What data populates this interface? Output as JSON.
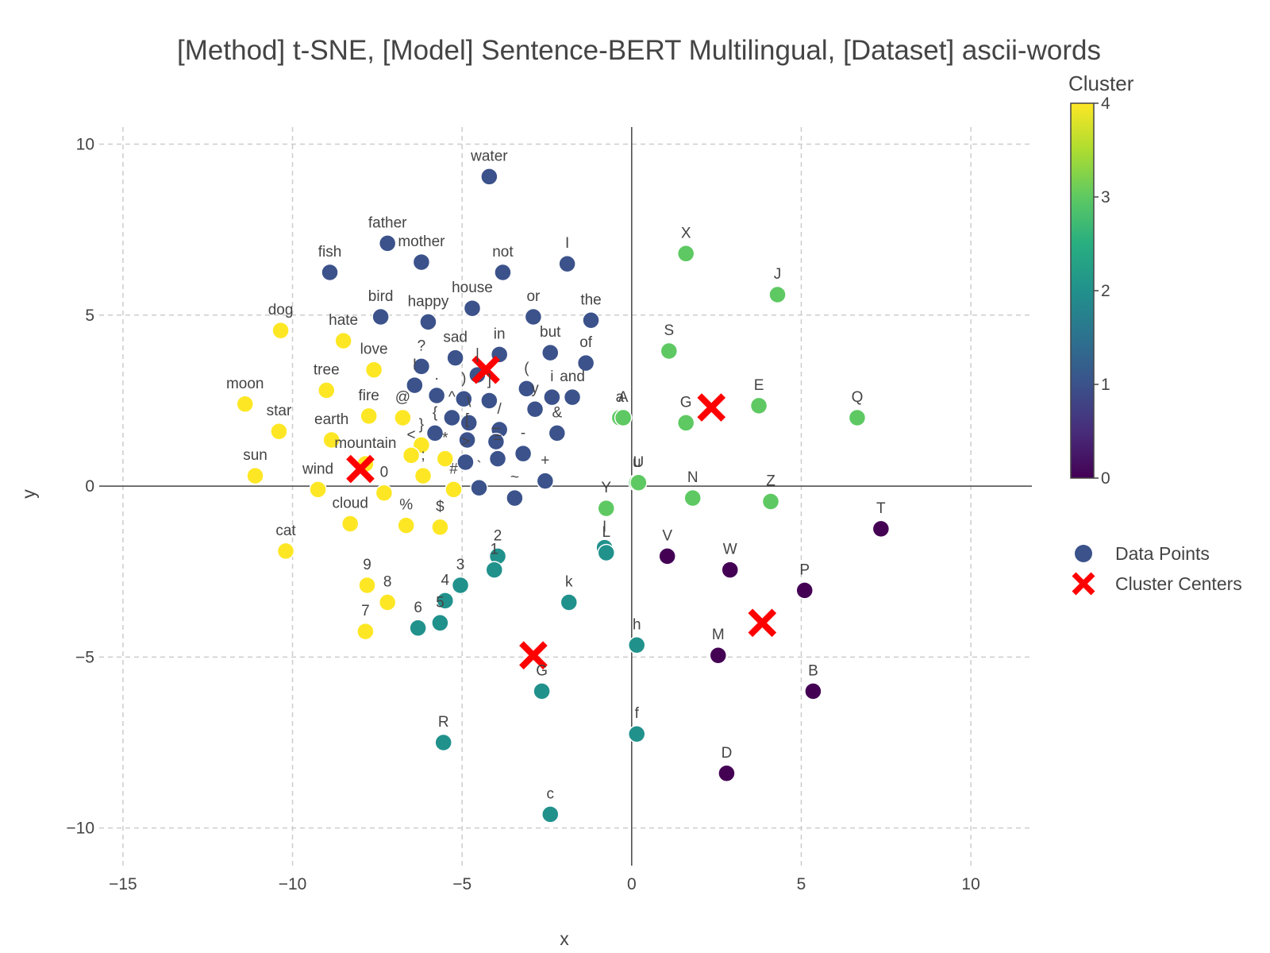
{
  "chart_data": {
    "type": "scatter",
    "title": "[Method] t-SNE, [Model] Sentence-BERT Multilingual, [Dataset] ascii-words",
    "xlabel": "x",
    "ylabel": "y",
    "xlim": [
      -15.7,
      11.8
    ],
    "ylim": [
      -11.1,
      10.5
    ],
    "xticks": [
      -15,
      -10,
      -5,
      0,
      5,
      10
    ],
    "xtick_labels": [
      "−15",
      "−10",
      "−5",
      "0",
      "5",
      "10"
    ],
    "yticks": [
      -10,
      -5,
      0,
      5,
      10
    ],
    "ytick_labels": [
      "−10",
      "−5",
      "0",
      "5",
      "10"
    ],
    "grid": true,
    "legend": {
      "position": "right",
      "entries": [
        "Data Points",
        "Cluster Centers"
      ]
    },
    "colorbar": {
      "title": "Cluster",
      "min": 0,
      "max": 4,
      "ticks": [
        "0",
        "1",
        "2",
        "3",
        "4"
      ],
      "colormap": "viridis"
    },
    "colors": {
      "cluster_0": "#440154",
      "cluster_1": "#3b528b",
      "cluster_2": "#21918c",
      "cluster_3": "#5ec962",
      "cluster_4": "#fde725",
      "center": "#ff0000"
    },
    "series": [
      {
        "name": "Data Points",
        "points": [
          {
            "label": "water",
            "x": -4.2,
            "y": 9.05,
            "cluster": 1
          },
          {
            "label": "father",
            "x": -7.2,
            "y": 7.1,
            "cluster": 1
          },
          {
            "label": "mother",
            "x": -6.2,
            "y": 6.55,
            "cluster": 1
          },
          {
            "label": "fish",
            "x": -8.9,
            "y": 6.25,
            "cluster": 1
          },
          {
            "label": "not",
            "x": -3.8,
            "y": 6.25,
            "cluster": 1
          },
          {
            "label": "I",
            "x": -1.9,
            "y": 6.5,
            "cluster": 1
          },
          {
            "label": "bird",
            "x": -7.4,
            "y": 4.95,
            "cluster": 1
          },
          {
            "label": "happy",
            "x": -6.0,
            "y": 4.8,
            "cluster": 1
          },
          {
            "label": "house",
            "x": -4.7,
            "y": 5.2,
            "cluster": 1
          },
          {
            "label": "or",
            "x": -2.9,
            "y": 4.95,
            "cluster": 1
          },
          {
            "label": "the",
            "x": -1.2,
            "y": 4.85,
            "cluster": 1
          },
          {
            "label": "sad",
            "x": -5.2,
            "y": 3.75,
            "cluster": 1
          },
          {
            "label": "in",
            "x": -3.9,
            "y": 3.85,
            "cluster": 1
          },
          {
            "label": "but",
            "x": -2.4,
            "y": 3.9,
            "cluster": 1
          },
          {
            "label": "of",
            "x": -1.35,
            "y": 3.6,
            "cluster": 1
          },
          {
            "label": "?",
            "x": -6.2,
            "y": 3.5,
            "cluster": 1
          },
          {
            "label": "!",
            "x": -6.4,
            "y": 2.95,
            "cluster": 1
          },
          {
            "label": ".",
            "x": -5.75,
            "y": 2.65,
            "cluster": 1
          },
          {
            "label": "|",
            "x": -4.55,
            "y": 3.25,
            "cluster": 1
          },
          {
            "label": "(",
            "x": -3.1,
            "y": 2.85,
            "cluster": 1
          },
          {
            "label": "i",
            "x": -2.35,
            "y": 2.6,
            "cluster": 1
          },
          {
            "label": "and",
            "x": -1.75,
            "y": 2.6,
            "cluster": 1
          },
          {
            "label": ")",
            "x": -4.95,
            "y": 2.55,
            "cluster": 1
          },
          {
            "label": "]",
            "x": -4.2,
            "y": 2.5,
            "cluster": 1
          },
          {
            "label": "y",
            "x": -2.85,
            "y": 2.25,
            "cluster": 1
          },
          {
            "label": "^",
            "x": -5.3,
            "y": 2.0,
            "cluster": 1
          },
          {
            "label": "{",
            "x": -5.8,
            "y": 1.55,
            "cluster": 1
          },
          {
            "label": "\\",
            "x": -4.8,
            "y": 1.85,
            "cluster": 1
          },
          {
            "label": "/",
            "x": -3.9,
            "y": 1.65,
            "cluster": 1
          },
          {
            "label": "&",
            "x": -2.2,
            "y": 1.55,
            "cluster": 1
          },
          {
            "label": "[",
            "x": -4.85,
            "y": 1.35,
            "cluster": 1
          },
          {
            "label": "_",
            "x": -4.0,
            "y": 1.3,
            "cluster": 1
          },
          {
            "label": "-",
            "x": -3.2,
            "y": 0.95,
            "cluster": 1
          },
          {
            "label": ">",
            "x": -4.9,
            "y": 0.7,
            "cluster": 1
          },
          {
            "label": "=",
            "x": -3.95,
            "y": 0.8,
            "cluster": 1
          },
          {
            "label": "+",
            "x": -2.55,
            "y": 0.15,
            "cluster": 1
          },
          {
            "label": "~",
            "x": -3.45,
            "y": -0.35,
            "cluster": 1
          },
          {
            "label": "`",
            "x": -4.5,
            "y": -0.05,
            "cluster": 1
          },
          {
            "label": "dog",
            "x": -10.35,
            "y": 4.55,
            "cluster": 4
          },
          {
            "label": "hate",
            "x": -8.5,
            "y": 4.25,
            "cluster": 4
          },
          {
            "label": "love",
            "x": -7.6,
            "y": 3.4,
            "cluster": 4
          },
          {
            "label": "moon",
            "x": -11.4,
            "y": 2.4,
            "cluster": 4
          },
          {
            "label": "tree",
            "x": -9.0,
            "y": 2.8,
            "cluster": 4
          },
          {
            "label": "star",
            "x": -10.4,
            "y": 1.6,
            "cluster": 4
          },
          {
            "label": "fire",
            "x": -7.75,
            "y": 2.05,
            "cluster": 4
          },
          {
            "label": "@",
            "x": -6.75,
            "y": 2.0,
            "cluster": 4
          },
          {
            "label": "earth",
            "x": -8.85,
            "y": 1.35,
            "cluster": 4
          },
          {
            "label": "}",
            "x": -6.2,
            "y": 1.2,
            "cluster": 4
          },
          {
            "label": "mountain",
            "x": -7.85,
            "y": 0.65,
            "cluster": 4
          },
          {
            "label": "<",
            "x": -6.5,
            "y": 0.9,
            "cluster": 4
          },
          {
            "label": "*",
            "x": -5.5,
            "y": 0.8,
            "cluster": 4
          },
          {
            "label": ";",
            "x": -6.15,
            "y": 0.3,
            "cluster": 4
          },
          {
            "label": "sun",
            "x": -11.1,
            "y": 0.3,
            "cluster": 4
          },
          {
            "label": "wind",
            "x": -9.25,
            "y": -0.1,
            "cluster": 4
          },
          {
            "label": "0",
            "x": -7.3,
            "y": -0.2,
            "cluster": 4
          },
          {
            "label": "#",
            "x": -5.25,
            "y": -0.1,
            "cluster": 4
          },
          {
            "label": "cloud",
            "x": -8.3,
            "y": -1.1,
            "cluster": 4
          },
          {
            "label": "%",
            "x": -6.65,
            "y": -1.15,
            "cluster": 4
          },
          {
            "label": "$",
            "x": -5.65,
            "y": -1.2,
            "cluster": 4
          },
          {
            "label": "cat",
            "x": -10.2,
            "y": -1.9,
            "cluster": 4
          },
          {
            "label": "9",
            "x": -7.8,
            "y": -2.9,
            "cluster": 4
          },
          {
            "label": "8",
            "x": -7.2,
            "y": -3.4,
            "cluster": 4
          },
          {
            "label": "7",
            "x": -7.85,
            "y": -4.25,
            "cluster": 4
          },
          {
            "label": "2",
            "x": -3.95,
            "y": -2.05,
            "cluster": 2
          },
          {
            "label": "1",
            "x": -4.05,
            "y": -2.45,
            "cluster": 2
          },
          {
            "label": "3",
            "x": -5.05,
            "y": -2.9,
            "cluster": 2
          },
          {
            "label": "4",
            "x": -5.5,
            "y": -3.35,
            "cluster": 2
          },
          {
            "label": "5",
            "x": -5.65,
            "y": -4.0,
            "cluster": 2
          },
          {
            "label": "6",
            "x": -6.3,
            "y": -4.15,
            "cluster": 2
          },
          {
            "label": "l",
            "x": -0.8,
            "y": -1.8,
            "cluster": 2
          },
          {
            "label": "L",
            "x": -0.75,
            "y": -1.95,
            "cluster": 2
          },
          {
            "label": "k",
            "x": -1.85,
            "y": -3.4,
            "cluster": 2
          },
          {
            "label": "h",
            "x": 0.15,
            "y": -4.65,
            "cluster": 2
          },
          {
            "label": "G",
            "x": -2.65,
            "y": -6.0,
            "cluster": 2
          },
          {
            "label": "f",
            "x": 0.15,
            "y": -7.25,
            "cluster": 2
          },
          {
            "label": "R",
            "x": -5.55,
            "y": -7.5,
            "cluster": 2
          },
          {
            "label": "c",
            "x": -2.4,
            "y": -9.6,
            "cluster": 2
          },
          {
            "label": "X",
            "x": 1.6,
            "y": 6.8,
            "cluster": 3
          },
          {
            "label": "J",
            "x": 4.3,
            "y": 5.6,
            "cluster": 3
          },
          {
            "label": "S",
            "x": 1.1,
            "y": 3.95,
            "cluster": 3
          },
          {
            "label": "E",
            "x": 3.75,
            "y": 2.35,
            "cluster": 3
          },
          {
            "label": "Q",
            "x": 6.65,
            "y": 2.0,
            "cluster": 3
          },
          {
            "label": "a",
            "x": -0.35,
            "y": 2.0,
            "cluster": 3
          },
          {
            "label": "A",
            "x": -0.25,
            "y": 2.0,
            "cluster": 3
          },
          {
            "label": "G",
            "x": 1.6,
            "y": 1.85,
            "cluster": 3
          },
          {
            "label": "u",
            "x": 0.15,
            "y": 0.1,
            "cluster": 3
          },
          {
            "label": "U",
            "x": 0.2,
            "y": 0.1,
            "cluster": 3
          },
          {
            "label": "N",
            "x": 1.8,
            "y": -0.35,
            "cluster": 3
          },
          {
            "label": "Z",
            "x": 4.1,
            "y": -0.45,
            "cluster": 3
          },
          {
            "label": "Y",
            "x": -0.75,
            "y": -0.65,
            "cluster": 3
          },
          {
            "label": "T",
            "x": 7.35,
            "y": -1.25,
            "cluster": 0
          },
          {
            "label": "V",
            "x": 1.05,
            "y": -2.05,
            "cluster": 0
          },
          {
            "label": "W",
            "x": 2.9,
            "y": -2.45,
            "cluster": 0
          },
          {
            "label": "P",
            "x": 5.1,
            "y": -3.05,
            "cluster": 0
          },
          {
            "label": "M",
            "x": 2.55,
            "y": -4.95,
            "cluster": 0
          },
          {
            "label": "B",
            "x": 5.35,
            "y": -6.0,
            "cluster": 0
          },
          {
            "label": "D",
            "x": 2.8,
            "y": -8.4,
            "cluster": 0
          }
        ]
      },
      {
        "name": "Cluster Centers",
        "points": [
          {
            "x": -4.3,
            "y": 3.4,
            "cluster": 1
          },
          {
            "x": -8.0,
            "y": 0.5,
            "cluster": 4
          },
          {
            "x": 2.35,
            "y": 2.3,
            "cluster": 3
          },
          {
            "x": -2.9,
            "y": -4.95,
            "cluster": 2
          },
          {
            "x": 3.85,
            "y": -4.0,
            "cluster": 0
          }
        ]
      }
    ]
  }
}
